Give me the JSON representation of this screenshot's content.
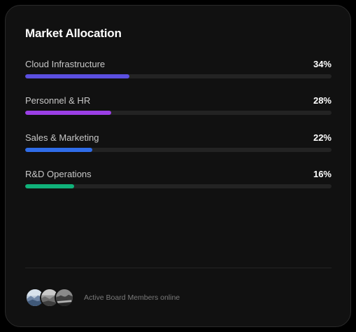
{
  "card": {
    "title": "Market Allocation"
  },
  "allocations": [
    {
      "label": "Cloud Infrastructure",
      "value_text": "34%",
      "fraction": 0.34,
      "color": "#5b4fe0"
    },
    {
      "label": "Personnel & HR",
      "value_text": "28%",
      "fraction": 0.28,
      "color": "#9b3fe6"
    },
    {
      "label": "Sales & Marketing",
      "value_text": "22%",
      "fraction": 0.22,
      "color": "#2f6ce8"
    },
    {
      "label": "R&D Operations",
      "value_text": "16%",
      "fraction": 0.16,
      "color": "#10b27a"
    }
  ],
  "footer": {
    "status_text": "Active Board Members online",
    "avatars": [
      "avatar-1",
      "avatar-2",
      "avatar-3"
    ]
  }
}
